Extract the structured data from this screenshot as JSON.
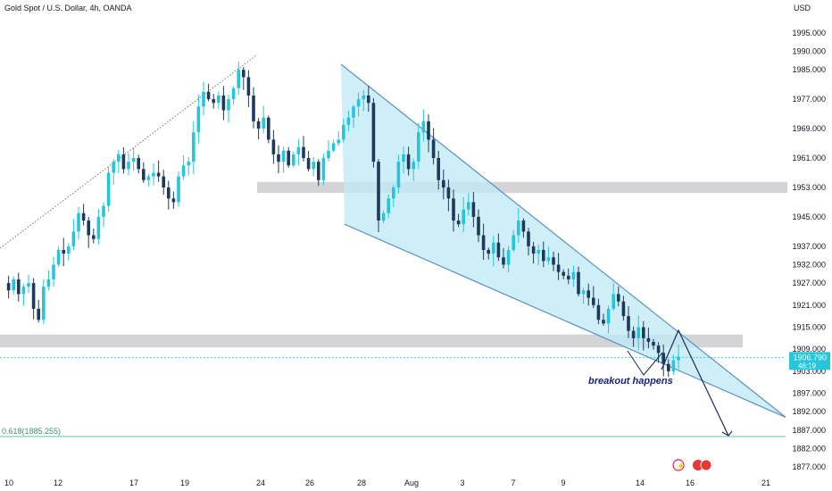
{
  "header": {
    "title": "Gold Spot / U.S. Dollar, 4h, OANDA",
    "currency": "USD"
  },
  "price_label": {
    "price": "1906.790",
    "countdown": "48:19"
  },
  "annotations": {
    "fib_label": "0.618(1885.255)",
    "breakout_label": "breakout happens"
  },
  "colors": {
    "up": "#26c6da",
    "down": "#1d3a5c",
    "wedge_fill": "#bfeaf5",
    "wedge_line": "#5b8fc7",
    "zone": "#d4d4d6",
    "fib_line": "#66bfa9",
    "arrow": "#1a2a5c",
    "axis_text": "#131722",
    "price_box": "#26c6da"
  },
  "chart_data": {
    "type": "candlestick",
    "title": "Gold Spot / U.S. Dollar, 4h, OANDA",
    "y_axis": {
      "ticks": [
        1877.0,
        1882.0,
        1887.0,
        1892.0,
        1897.0,
        1903.0,
        1909.0,
        1915.0,
        1921.0,
        1927.0,
        1932.0,
        1937.0,
        1945.0,
        1953.0,
        1961.0,
        1969.0,
        1977.0,
        1985.0,
        1990.0,
        1995.0
      ],
      "tick_labels": [
        "1877.000",
        "1882.000",
        "1887.000",
        "1892.000",
        "1897.000",
        "1903.000",
        "1909.000",
        "1915.000",
        "1921.000",
        "1927.000",
        "1932.000",
        "1937.000",
        "1945.000",
        "1953.000",
        "1961.000",
        "1969.000",
        "1977.000",
        "1985.000",
        "1990.000",
        "1995.000"
      ],
      "ylim": [
        1874,
        1999
      ]
    },
    "x_axis": {
      "tick_labels": [
        "10",
        "12",
        "17",
        "19",
        "24",
        "26",
        "28",
        "Aug",
        "3",
        "7",
        "9",
        "14",
        "16",
        "21"
      ]
    },
    "last_price": 1906.79,
    "fib_level": 1885.255,
    "support_zones": [
      {
        "low": 1951.5,
        "high": 1954.5
      },
      {
        "low": 1909.5,
        "high": 1913.0
      }
    ],
    "wedge": {
      "upper": {
        "from_price": 1986.5,
        "to_price": 1890.5
      },
      "lower": {
        "from_price": 1943.0,
        "to_price": 1890.5
      }
    },
    "projection_target": 1885.5,
    "candles_close_path": [
      1927,
      1925,
      1928,
      1924,
      1926,
      1927,
      1920,
      1917,
      1926,
      1928,
      1932,
      1936,
      1935,
      1937,
      1941,
      1946,
      1944,
      1940,
      1939,
      1945,
      1948,
      1957,
      1960,
      1962,
      1958,
      1960,
      1961,
      1958,
      1955,
      1956,
      1957,
      1956,
      1953,
      1950,
      1949,
      1956,
      1959,
      1960,
      1968,
      1975,
      1979,
      1977,
      1976,
      1978,
      1974,
      1977,
      1980,
      1985,
      1983,
      1978,
      1971,
      1969,
      1972,
      1966,
      1962,
      1960,
      1963,
      1959,
      1962,
      1964,
      1961,
      1958,
      1960,
      1955,
      1961,
      1963,
      1965,
      1966,
      1970,
      1972,
      1975,
      1977,
      1978,
      1976,
      1960,
      1944,
      1946,
      1950,
      1953,
      1960,
      1962,
      1958,
      1960,
      1968,
      1971,
      1966,
      1961,
      1955,
      1953,
      1950,
      1944,
      1943,
      1947,
      1949,
      1945,
      1940,
      1936,
      1935,
      1938,
      1934,
      1932,
      1936,
      1940,
      1944,
      1941,
      1937,
      1935,
      1936,
      1933,
      1934,
      1932,
      1930,
      1929,
      1928,
      1930,
      1924,
      1925,
      1923,
      1921,
      1917,
      1916,
      1920,
      1924,
      1922,
      1918,
      1914,
      1912,
      1915,
      1912,
      1911,
      1910,
      1908,
      1905,
      1903,
      1906,
      1907
    ]
  }
}
